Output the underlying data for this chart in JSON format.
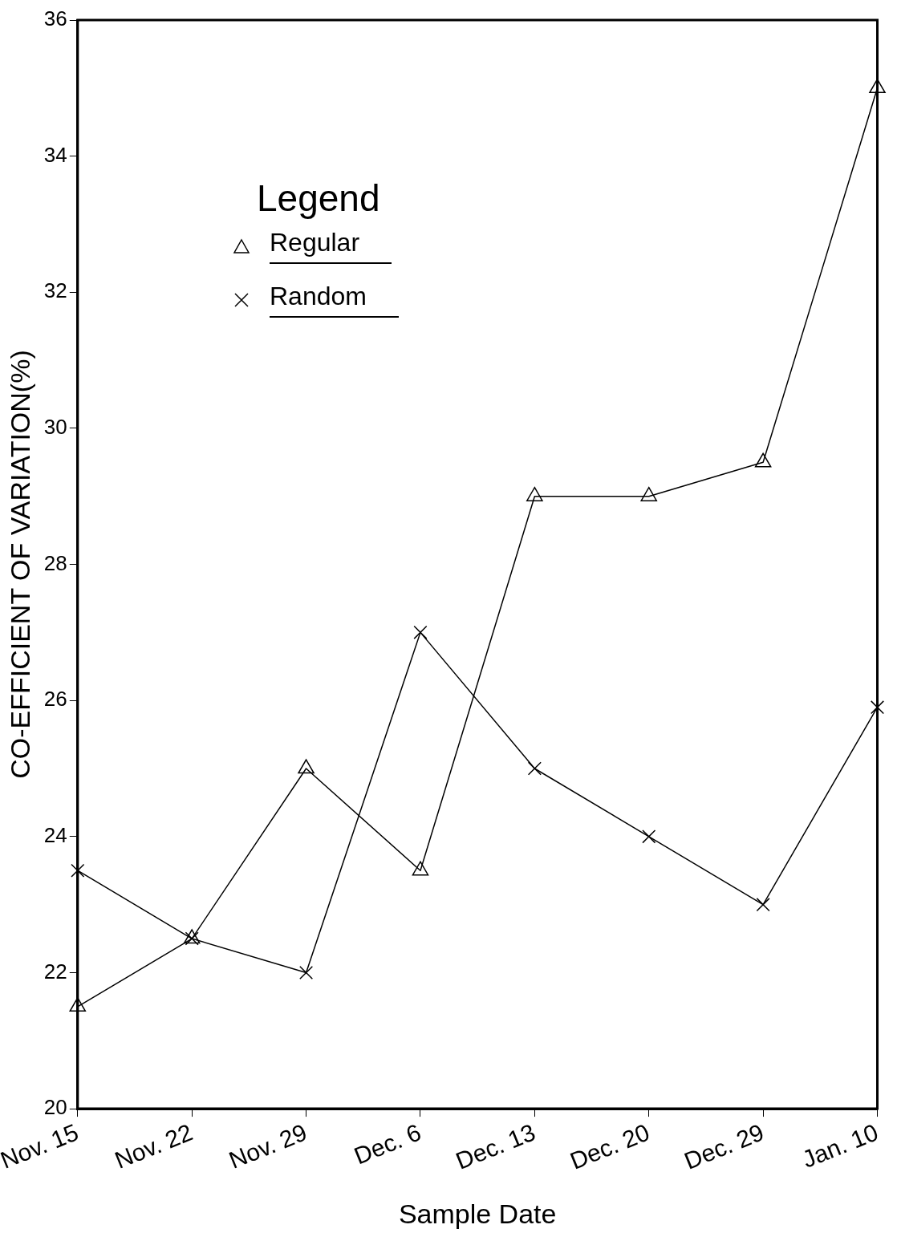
{
  "chart_data": {
    "type": "line",
    "xlabel": "Sample Date",
    "ylabel": "CO-EFFICIENT OF VARIATION(%)",
    "legend_title": "Legend",
    "legend": "top left",
    "grid": false,
    "line_style": "solid",
    "categories": [
      "Nov. 15",
      "Nov. 22",
      "Nov. 29",
      "Dec. 6",
      "Dec. 13",
      "Dec. 20",
      "Dec. 29",
      "Jan. 10"
    ],
    "ylim": [
      20,
      36
    ],
    "yticks": [
      20,
      22,
      24,
      26,
      28,
      30,
      32,
      34,
      36
    ],
    "series": [
      {
        "name": "Regular",
        "color": "#000000",
        "marker": "triangle",
        "values": [
          21.5,
          22.5,
          25.0,
          23.5,
          29.0,
          29.0,
          29.5,
          35.0
        ]
      },
      {
        "name": "Random",
        "color": "#000000",
        "marker": "cross",
        "values": [
          23.5,
          22.5,
          22.0,
          27.0,
          25.0,
          24.0,
          23.0,
          25.9
        ]
      }
    ]
  }
}
